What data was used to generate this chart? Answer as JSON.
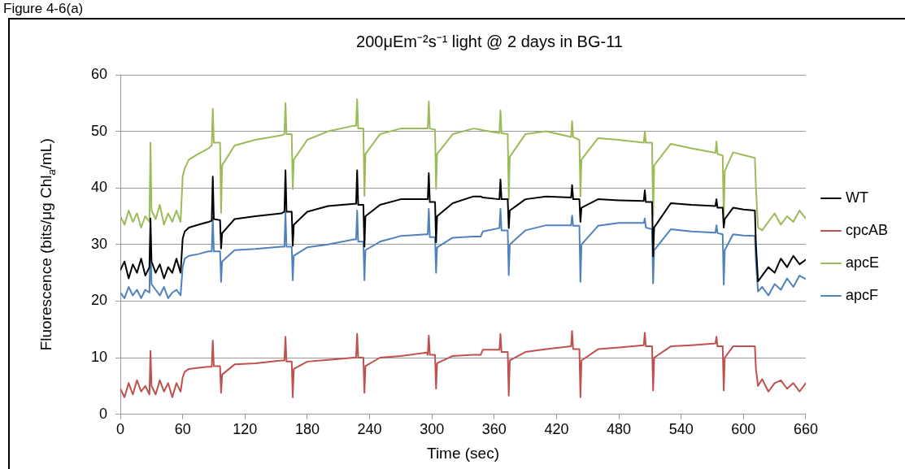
{
  "chart_data": {
    "type": "line",
    "title": "200μEm⁻²s⁻¹ light @ 2 days in BG-11",
    "xlabel": "Time (sec)",
    "ylabel": "Fluorescence (bits/μg Chl$_{a}$/mL)",
    "annotations": [
      "Figure 4-6(a)"
    ],
    "x": [
      0,
      4,
      8,
      12,
      16,
      20,
      24,
      28,
      29,
      30,
      34,
      38,
      42,
      46,
      50,
      54,
      58,
      60,
      62,
      66,
      75,
      85,
      88,
      89,
      90,
      96,
      97,
      98,
      110,
      130,
      155,
      158,
      159,
      160,
      165,
      166,
      167,
      180,
      200,
      225,
      227,
      228,
      229,
      234,
      235,
      236,
      250,
      270,
      295,
      296,
      297,
      298,
      303,
      304,
      305,
      320,
      340,
      347,
      349,
      365,
      366,
      367,
      373,
      374,
      375,
      390,
      410,
      434,
      435,
      436,
      442,
      443,
      444,
      460,
      480,
      504,
      505,
      506,
      512,
      513,
      514,
      530,
      550,
      573,
      574,
      575,
      580,
      581,
      582,
      590,
      600,
      611,
      612,
      614,
      618,
      624,
      630,
      636,
      642,
      648,
      654,
      660
    ],
    "xlim": [
      0,
      660
    ],
    "xticks": [
      0,
      60,
      120,
      180,
      240,
      300,
      360,
      420,
      480,
      540,
      600,
      660
    ],
    "ylim": [
      0,
      60
    ],
    "yticks": [
      0,
      10,
      20,
      30,
      40,
      50,
      60
    ],
    "grid": "y",
    "legend": "right",
    "series": [
      {
        "name": "WT",
        "color": "#000000",
        "values": [
          25.5,
          27,
          24,
          26.5,
          25,
          27.5,
          24.5,
          26,
          34.6,
          27,
          25,
          26.5,
          24,
          26,
          25,
          27.5,
          25,
          31,
          32.3,
          33,
          33.5,
          34,
          34.2,
          42,
          34.5,
          34.3,
          29.3,
          32,
          34.5,
          35,
          35.5,
          35.8,
          43.1,
          35.8,
          35.8,
          29.8,
          33.5,
          35.8,
          36.8,
          37.2,
          37.2,
          43.1,
          37,
          37,
          29.6,
          35,
          37,
          38,
          38,
          38,
          42.6,
          37.5,
          37.5,
          30.4,
          35,
          37.3,
          38.5,
          38.5,
          38.3,
          38,
          41.5,
          38,
          38,
          32.9,
          36,
          38,
          38.5,
          38.3,
          40.5,
          38,
          38,
          34,
          36.5,
          38,
          37.8,
          37.7,
          39.6,
          37.5,
          37.5,
          27.9,
          33,
          37.3,
          37,
          36.8,
          38,
          36.5,
          36.5,
          33,
          34.5,
          36.5,
          36.2,
          36,
          30,
          23.5,
          24.5,
          26,
          25,
          27.5,
          26,
          28,
          26.5,
          27.3
        ]
      },
      {
        "name": "cpcAB",
        "color": "#c0504d",
        "values": [
          4.5,
          3,
          5.5,
          3.5,
          6,
          4,
          5,
          3.5,
          11.2,
          5,
          3.5,
          6,
          4,
          5.5,
          3,
          5.5,
          4,
          6.5,
          7.5,
          8,
          8.2,
          8.4,
          8.4,
          13,
          8.5,
          8.5,
          3.8,
          7,
          8.8,
          9,
          9.5,
          9.5,
          13.7,
          9.3,
          9.3,
          3,
          8,
          9.3,
          9.6,
          10,
          10,
          14.2,
          10,
          10,
          3.8,
          8.5,
          10,
          10.3,
          10.9,
          10.5,
          13.9,
          10.5,
          10.5,
          4.5,
          9,
          10.3,
          10.5,
          10.5,
          11.4,
          11.4,
          14.2,
          11,
          11,
          3.3,
          9.5,
          11,
          11.5,
          12,
          14.7,
          11.5,
          11.5,
          3,
          9.5,
          11.5,
          11.8,
          12.2,
          14.4,
          12,
          12,
          4.2,
          10,
          12,
          12.2,
          12.5,
          13.7,
          12,
          12,
          4.2,
          10,
          12,
          12,
          12,
          8,
          5,
          6.2,
          4,
          5.5,
          6,
          4.5,
          5.5,
          4,
          5.5
        ]
      },
      {
        "name": "apcE",
        "color": "#9bbb59",
        "values": [
          35,
          33.5,
          36,
          34,
          35.5,
          33,
          35,
          34,
          48,
          36,
          34.5,
          37,
          33.5,
          35.5,
          34,
          36,
          34,
          42,
          43.5,
          45,
          46,
          47,
          47.5,
          54,
          48,
          48,
          35.6,
          44,
          47.5,
          48.5,
          49.3,
          49.5,
          55,
          49.5,
          49.5,
          39.8,
          45,
          48.5,
          50,
          51,
          51,
          55.7,
          50.5,
          50.5,
          38.6,
          46,
          49.5,
          50.5,
          50.5,
          50.5,
          55.3,
          50.5,
          50.3,
          39.8,
          46,
          49.5,
          50.5,
          50.3,
          50.2,
          49.7,
          53.7,
          49.7,
          49.5,
          38,
          45.5,
          49.5,
          50,
          49,
          51.8,
          49,
          48.5,
          38.5,
          45,
          48.8,
          48.5,
          48,
          50,
          48,
          48,
          35,
          44,
          47.8,
          47,
          46.2,
          48.2,
          46,
          45.7,
          34.6,
          43,
          46.3,
          45.8,
          45.3,
          40,
          33,
          32.5,
          34,
          35.5,
          33.5,
          35,
          34,
          36,
          34.6
        ]
      },
      {
        "name": "apcF",
        "color": "#4f81bd",
        "values": [
          21.5,
          20.5,
          22.5,
          21,
          22,
          20.5,
          22,
          21.5,
          31.8,
          23,
          22,
          21,
          22.5,
          20.5,
          21.5,
          22,
          21,
          26,
          27.5,
          28,
          28.3,
          28.8,
          28.8,
          34.8,
          28.8,
          28.8,
          23.4,
          27,
          29,
          29.2,
          29.6,
          29.6,
          35.6,
          29.6,
          29.6,
          23.7,
          28,
          29.5,
          30,
          30.9,
          30.9,
          36,
          30.5,
          30.5,
          23.7,
          29,
          30.5,
          31.5,
          31.8,
          31.8,
          36.3,
          31.3,
          31.3,
          25,
          29.5,
          31.2,
          31.4,
          31.4,
          32.3,
          32.9,
          36.3,
          32.5,
          32.5,
          24.6,
          30,
          32.5,
          33.4,
          33.4,
          35.1,
          33.3,
          33.3,
          23.4,
          30,
          33.3,
          33.8,
          33.8,
          34.6,
          33,
          32.7,
          23.1,
          29,
          32.7,
          32.3,
          32.1,
          33.4,
          32,
          31.8,
          22.9,
          29,
          31.8,
          31.6,
          31.5,
          27,
          21.7,
          22.5,
          21,
          23,
          22,
          24,
          22.5,
          24.5,
          23.9
        ]
      }
    ]
  }
}
